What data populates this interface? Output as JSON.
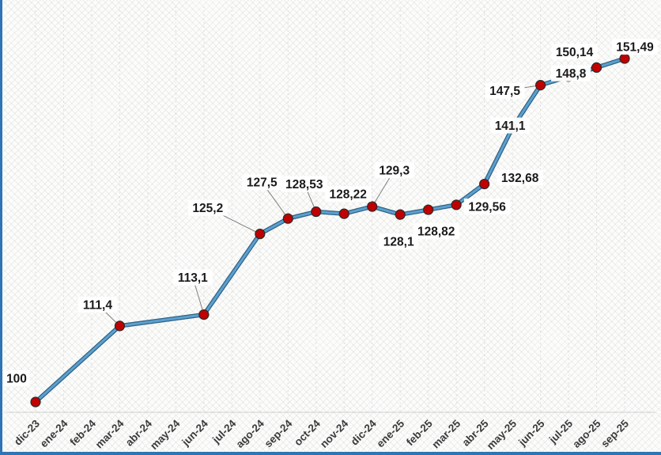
{
  "chart_data": {
    "type": "line",
    "title": "",
    "xlabel": "",
    "ylabel": "",
    "legend": "none",
    "grid": "faint-vertical-dashed",
    "background": "diagonal-crosshatch",
    "decimal_separator": ",",
    "ylim": [
      100,
      151.49
    ],
    "categories": [
      "dic-23",
      "ene-24",
      "feb-24",
      "mar-24",
      "abr-24",
      "may-24",
      "jun-24",
      "jul-24",
      "ago-24",
      "sep-24",
      "oct-24",
      "nov-24",
      "dic-24",
      "ene-25",
      "feb-25",
      "mar-25",
      "abr-25",
      "may-25",
      "jun-25",
      "jul-25",
      "ago-25",
      "sep-25"
    ],
    "values": [
      100,
      null,
      null,
      111.4,
      null,
      null,
      113.1,
      null,
      125.2,
      127.5,
      128.53,
      128.22,
      129.3,
      128.1,
      128.82,
      129.56,
      132.68,
      141.1,
      147.5,
      148.8,
      150.14,
      151.49
    ],
    "point_labels": [
      "100",
      null,
      null,
      "111,4",
      null,
      null,
      "113,1",
      null,
      "125,2",
      "127,5",
      "128,53",
      "128,22",
      "129,3",
      "128,1",
      "128,82",
      "129,56",
      "132,68",
      "141,1",
      "147,5",
      "148,8",
      "150,14",
      "151,49"
    ],
    "label_offsets": [
      [
        -24,
        -30,
        0
      ],
      null,
      null,
      [
        -28,
        -27,
        1
      ],
      null,
      null,
      [
        -14,
        -47,
        1
      ],
      null,
      [
        -66,
        -33,
        1
      ],
      [
        -33,
        -46,
        1
      ],
      [
        -15,
        -35,
        1
      ],
      [
        5,
        -25,
        0
      ],
      [
        28,
        -46,
        1
      ],
      [
        -2,
        34,
        0
      ],
      [
        10,
        27,
        0
      ],
      [
        39,
        2,
        0
      ],
      [
        45,
        -8,
        0
      ],
      [
        -3,
        -3,
        0
      ],
      [
        -45,
        7,
        1
      ],
      [
        3,
        -4,
        0
      ],
      [
        -28,
        -20,
        0
      ],
      [
        13,
        -15,
        0
      ]
    ],
    "colors": {
      "line": "#5ca0cf",
      "line_outline": "#2e6284",
      "marker_fill": "#c00000",
      "marker_stroke": "#2b2b2b",
      "point_label_text": "#1a1a1a",
      "point_label_bg": "#ffffff",
      "axis_text": "#3b3b3b",
      "gridline": "#cfcfcf",
      "axis_line": "#c6c6c6",
      "leader_line": "#7f7f7f",
      "frame_accent": "#2e75b6"
    }
  }
}
